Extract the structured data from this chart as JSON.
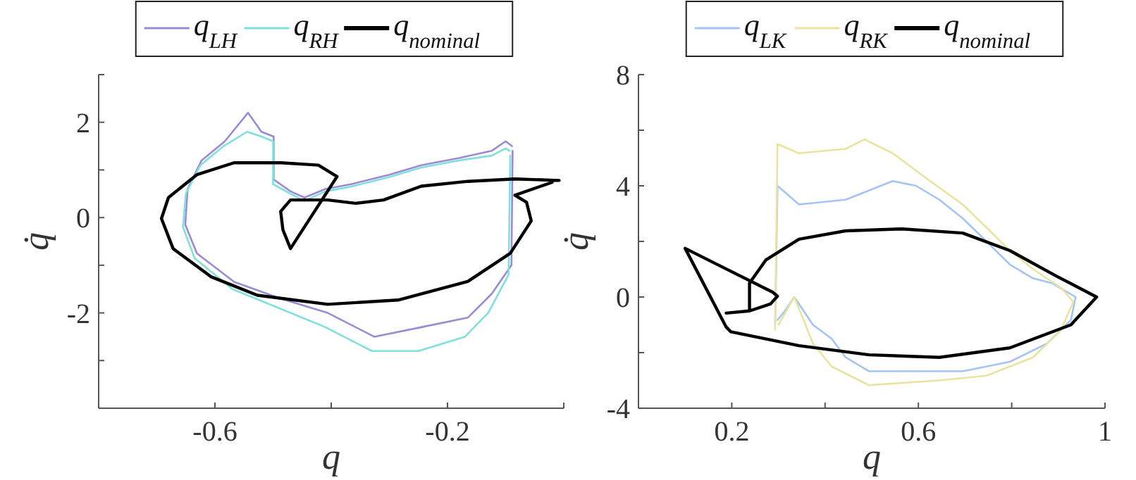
{
  "chart_data": [
    {
      "type": "line",
      "xlabel": "q",
      "ylabel": "q̇",
      "legend": "top",
      "xlim": [
        -0.8,
        0
      ],
      "ylim": [
        -4,
        3
      ],
      "xticks": [
        {
          "value": -0.8,
          "label": null
        },
        -0.6,
        {
          "value": -0.4,
          "label": null
        },
        -0.2,
        {
          "value": 0,
          "label": null
        }
      ],
      "yticks": [
        {
          "value": -3,
          "label": null
        },
        -2,
        {
          "value": -1,
          "label": null
        },
        0,
        {
          "value": 1,
          "label": null
        },
        2,
        {
          "value": 3,
          "label": null
        }
      ],
      "series": [
        {
          "name": "q$_{LH}$",
          "color": "#9b8ad6",
          "x": [
            -0.088,
            -0.09,
            -0.124,
            -0.165,
            -0.245,
            -0.326,
            -0.406,
            -0.487,
            -0.567,
            -0.631,
            -0.651,
            -0.647,
            -0.623,
            -0.583,
            -0.543,
            -0.52,
            -0.499,
            -0.499,
            -0.47,
            -0.446,
            -0.41,
            -0.366,
            -0.3,
            -0.245,
            -0.18,
            -0.124,
            -0.1,
            -0.089
          ],
          "values": [
            1.4,
            -1.0,
            -1.6,
            -2.1,
            -2.3,
            -2.5,
            -2.0,
            -1.7,
            -1.35,
            -0.75,
            -0.15,
            0.6,
            1.2,
            1.6,
            2.2,
            1.8,
            1.7,
            0.8,
            0.55,
            0.42,
            0.6,
            0.7,
            0.9,
            1.1,
            1.25,
            1.4,
            1.6,
            1.5
          ]
        },
        {
          "name": "q$_{RH}$",
          "color": "#7fe0dc",
          "x": [
            -0.092,
            -0.095,
            -0.13,
            -0.17,
            -0.25,
            -0.33,
            -0.41,
            -0.49,
            -0.57,
            -0.635,
            -0.655,
            -0.65,
            -0.625,
            -0.585,
            -0.545,
            -0.52,
            -0.5,
            -0.5,
            -0.47,
            -0.446,
            -0.41,
            -0.366,
            -0.3,
            -0.245,
            -0.18,
            -0.124,
            -0.1,
            -0.093
          ],
          "values": [
            1.3,
            -1.2,
            -2.0,
            -2.5,
            -2.8,
            -2.8,
            -2.3,
            -1.9,
            -1.5,
            -0.85,
            -0.2,
            0.5,
            1.1,
            1.5,
            1.8,
            1.7,
            1.6,
            0.7,
            0.5,
            0.35,
            0.55,
            0.65,
            0.85,
            1.05,
            1.2,
            1.3,
            1.45,
            1.4
          ]
        },
        {
          "name": "q$_{nominal}$",
          "color": "#000000",
          "x": [
            -0.008,
            -0.084,
            -0.165,
            -0.245,
            -0.31,
            -0.358,
            -0.406,
            -0.47,
            -0.487,
            -0.483,
            -0.47,
            -0.39,
            -0.422,
            -0.487,
            -0.567,
            -0.631,
            -0.68,
            -0.692,
            -0.672,
            -0.607,
            -0.527,
            -0.406,
            -0.285,
            -0.165,
            -0.092,
            -0.056,
            -0.064,
            -0.084,
            -0.02
          ],
          "values": [
            0.78,
            0.81,
            0.76,
            0.66,
            0.37,
            0.3,
            0.37,
            0.37,
            0.13,
            -0.26,
            -0.65,
            0.86,
            1.1,
            1.15,
            1.15,
            0.9,
            0.42,
            -0.02,
            -0.65,
            -1.24,
            -1.63,
            -1.82,
            -1.73,
            -1.34,
            -0.75,
            -0.07,
            0.32,
            0.47,
            0.74
          ]
        }
      ]
    },
    {
      "type": "line",
      "xlabel": "q",
      "ylabel": "q̇",
      "legend": "top",
      "xlim": [
        0,
        1
      ],
      "ylim": [
        -4,
        8
      ],
      "xticks": [
        0.2,
        {
          "value": 0.4,
          "label": null
        },
        0.6,
        {
          "value": 0.8,
          "label": null
        },
        1
      ],
      "yticks": [
        -4,
        {
          "value": -2,
          "label": null
        },
        0,
        {
          "value": 2,
          "label": null
        },
        4,
        {
          "value": 6,
          "label": null
        },
        8
      ],
      "series": [
        {
          "name": "q$_{LK}$",
          "color": "#a4c4f5",
          "x": [
            0.293,
            0.298,
            0.344,
            0.444,
            0.545,
            0.595,
            0.645,
            0.695,
            0.746,
            0.796,
            0.846,
            0.886,
            0.937,
            0.927,
            0.876,
            0.796,
            0.695,
            0.595,
            0.494,
            0.444,
            0.414,
            0.374,
            0.334,
            0.314,
            0.298
          ],
          "values": [
            -1.0,
            4.0,
            3.33,
            3.5,
            4.17,
            4.0,
            3.5,
            2.83,
            2.0,
            1.17,
            0.67,
            0.5,
            0,
            -0.83,
            -1.67,
            -2.33,
            -2.67,
            -2.67,
            -2.67,
            -2.17,
            -1.5,
            -1.0,
            0,
            -0.5,
            -0.83
          ]
        },
        {
          "name": "q$_{RK}$",
          "color": "#e8e4a0",
          "x": [
            0.293,
            0.298,
            0.344,
            0.444,
            0.484,
            0.545,
            0.625,
            0.695,
            0.746,
            0.796,
            0.846,
            0.906,
            0.932,
            0.906,
            0.846,
            0.746,
            0.645,
            0.494,
            0.414,
            0.374,
            0.334,
            0.3
          ],
          "values": [
            -1.17,
            5.5,
            5.17,
            5.33,
            5.67,
            5.17,
            4.17,
            3.33,
            2.5,
            1.67,
            1.0,
            0.33,
            -0.17,
            -1.17,
            -2.17,
            -2.83,
            -3.0,
            -3.17,
            -2.5,
            -1.67,
            0,
            -1.0
          ]
        },
        {
          "name": "q$_{nominal}$",
          "color": "#000000",
          "x": [
            0.188,
            0.238,
            0.283,
            0.298,
            0.288,
            0.1,
            0.188,
            0.198,
            0.344,
            0.494,
            0.645,
            0.796,
            0.927,
            0.982,
            0.896,
            0.796,
            0.695,
            0.565,
            0.444,
            0.344,
            0.273,
            0.238,
            0.238
          ],
          "values": [
            -0.58,
            -0.5,
            -0.25,
            0.03,
            0.17,
            1.75,
            -1.08,
            -1.25,
            -1.75,
            -2.08,
            -2.17,
            -1.83,
            -1.0,
            0,
            0.75,
            1.67,
            2.3,
            2.45,
            2.38,
            2.08,
            1.33,
            0.5,
            -0.5
          ]
        }
      ]
    }
  ]
}
